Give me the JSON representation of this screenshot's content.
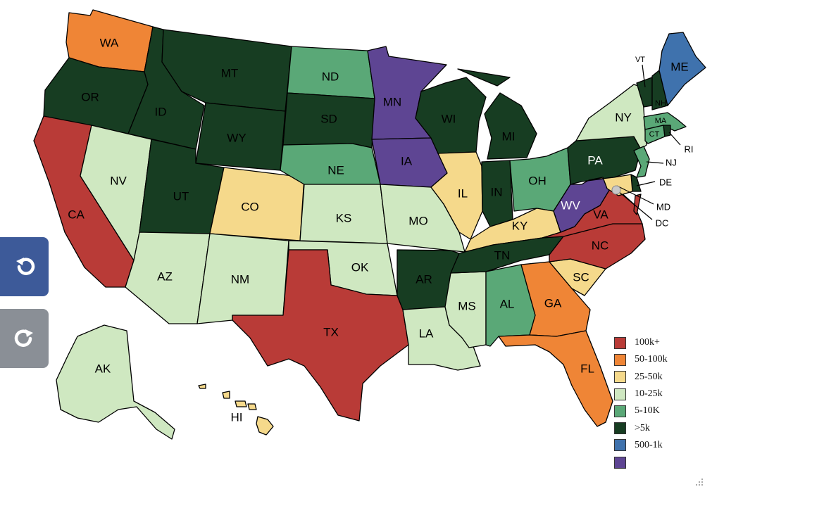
{
  "colors": {
    "c100k": "#b93b37",
    "c50_100k": "#ef8536",
    "c25_50k": "#f5d98b",
    "c10_25k": "#cfe8c1",
    "c5_10k": "#5aa877",
    "c5k": "#173d22",
    "c500_1k": "#3f72ad",
    "cpurple": "#5e4593",
    "undo_bg": "#3d5a99",
    "redo_bg": "#8a8f96"
  },
  "legend": [
    {
      "label": "100k+",
      "color": "#b93b37"
    },
    {
      "label": "50-100k",
      "color": "#ef8536"
    },
    {
      "label": "25-50k",
      "color": "#f5d98b"
    },
    {
      "label": "10-25k",
      "color": "#cfe8c1"
    },
    {
      "label": "5-10K",
      "color": "#5aa877"
    },
    {
      "label": ">5k",
      "color": "#173d22"
    },
    {
      "label": "500-1k",
      "color": "#3f72ad"
    },
    {
      "label": "",
      "color": "#5e4593"
    }
  ],
  "states": {
    "WA": "WA",
    "OR": "OR",
    "CA": "CA",
    "ID": "ID",
    "NV": "NV",
    "MT": "MT",
    "WY": "WY",
    "UT": "UT",
    "AZ": "AZ",
    "CO": "CO",
    "NM": "NM",
    "ND": "ND",
    "SD": "SD",
    "NE": "NE",
    "KS": "KS",
    "OK": "OK",
    "TX": "TX",
    "MN": "MN",
    "IA": "IA",
    "MO": "MO",
    "AR": "AR",
    "LA": "LA",
    "WI": "WI",
    "IL": "IL",
    "MI": "MI",
    "IN": "IN",
    "OH": "OH",
    "KY": "KY",
    "TN": "TN",
    "MS": "MS",
    "AL": "AL",
    "GA": "GA",
    "FL": "FL",
    "SC": "SC",
    "NC": "NC",
    "VA": "VA",
    "WV": "WV",
    "PA": "PA",
    "NY": "NY",
    "VT": "VT",
    "NH": "NH",
    "ME": "ME",
    "MA": "MA",
    "CT": "CT",
    "RI": "RI",
    "NJ": "NJ",
    "DE": "DE",
    "MD": "MD",
    "DC": "DC",
    "AK": "AK",
    "HI": "HI"
  },
  "icons": {
    "undo": "undo-icon",
    "redo": "redo-icon",
    "resize": "resize-grip-icon"
  }
}
